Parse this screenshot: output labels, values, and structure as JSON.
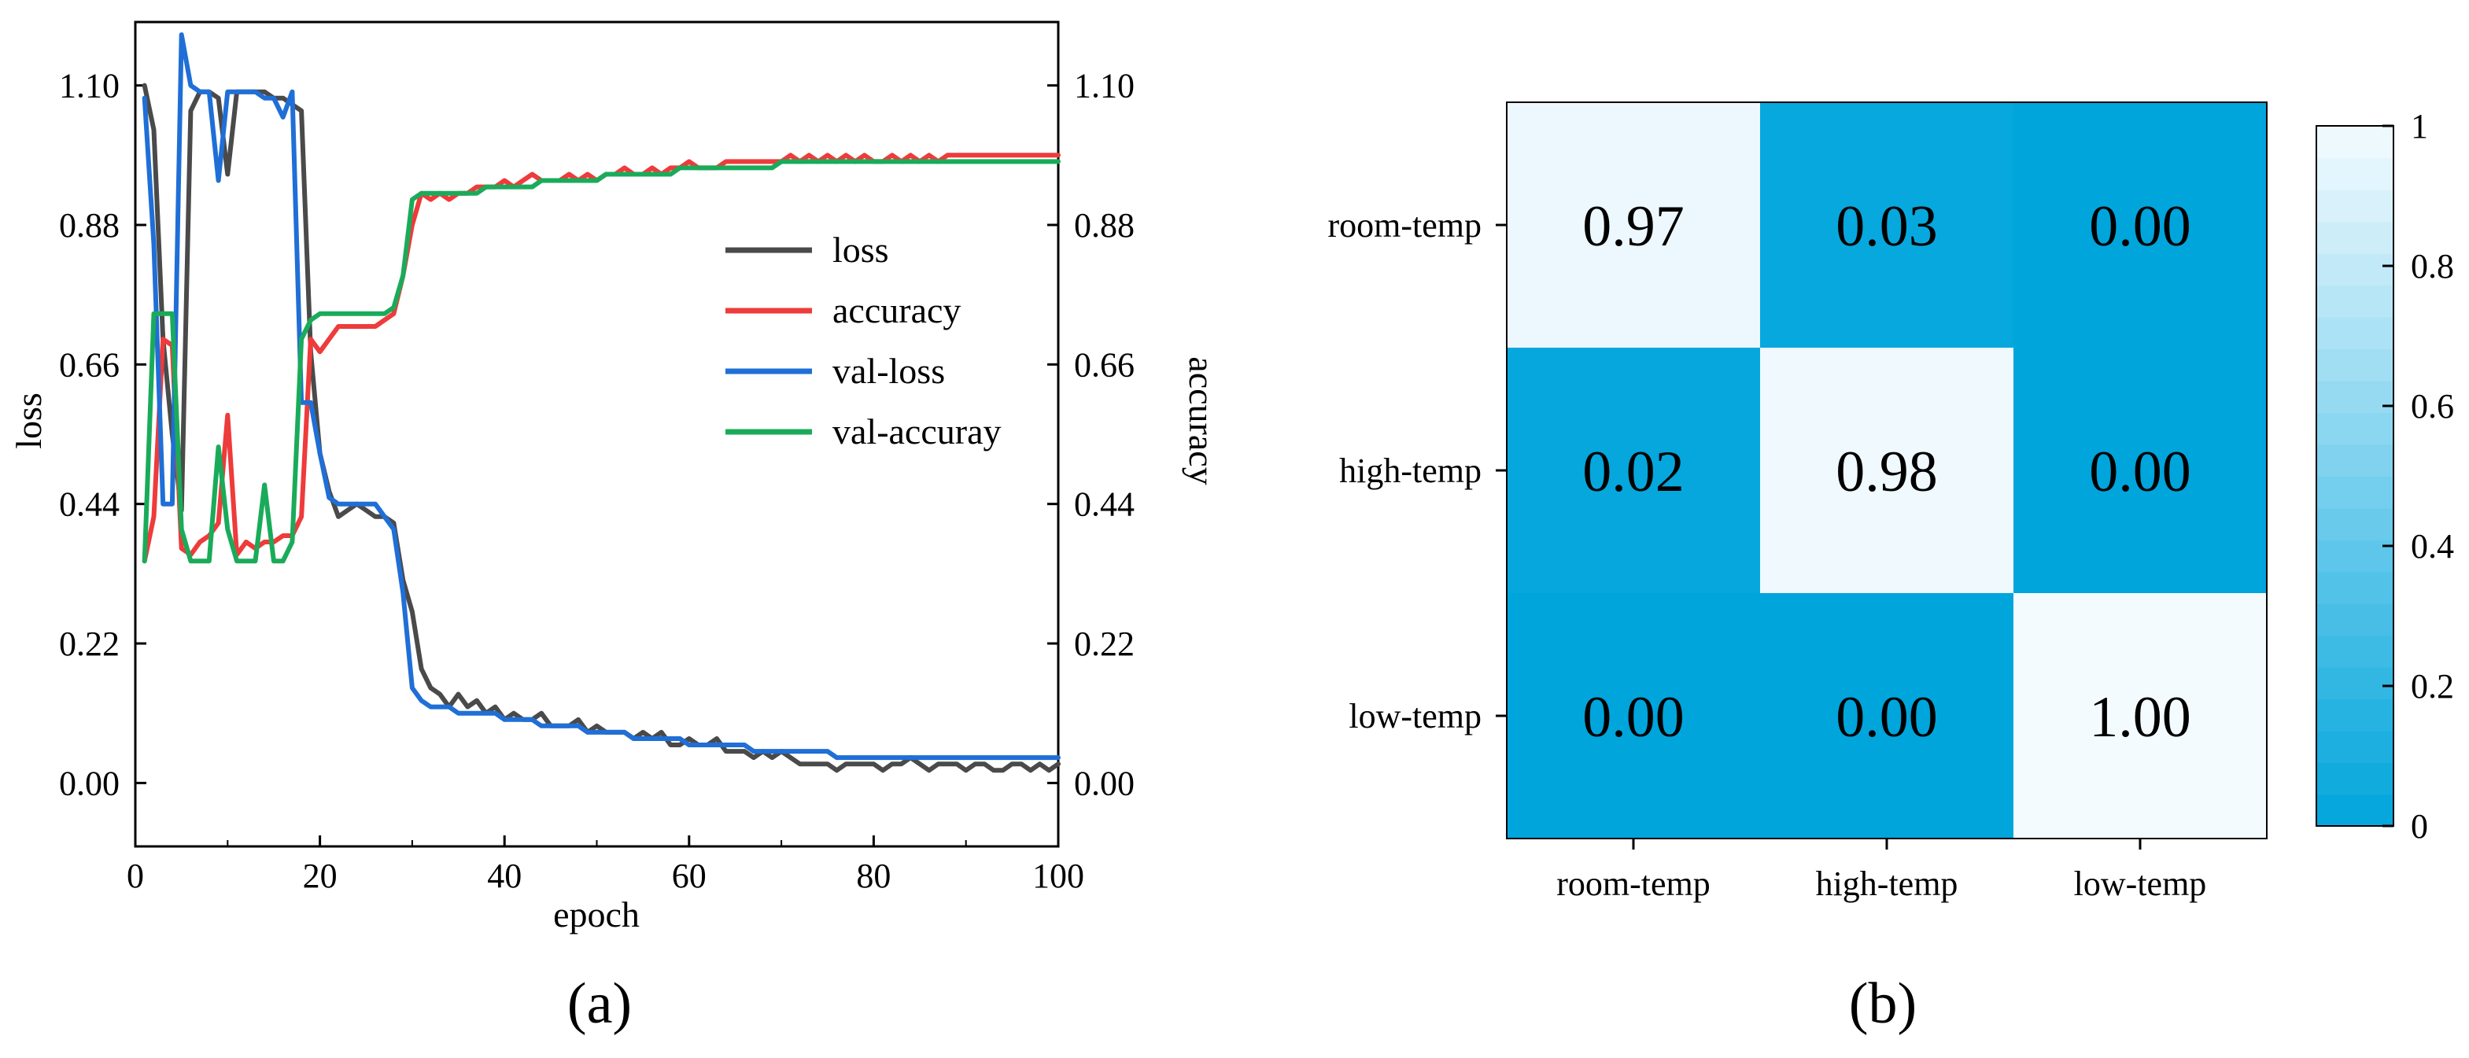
{
  "chart_data": [
    {
      "type": "line",
      "panel_label": "(a)",
      "xlabel": "epoch",
      "ylabel": "loss",
      "ylabel_right": "accuracy",
      "xlim": [
        0,
        100
      ],
      "ylim": [
        -0.1,
        1.2
      ],
      "y2lim": [
        -0.1,
        1.2
      ],
      "xticks": [
        "0",
        "20",
        "40",
        "60",
        "80",
        "100"
      ],
      "yticks": [
        "0.00",
        "0.22",
        "0.44",
        "0.66",
        "0.88",
        "1.10"
      ],
      "y2ticks": [
        "0.00",
        "0.22",
        "0.44",
        "0.66",
        "0.88",
        "1.10"
      ],
      "legend_position": "center-right",
      "series": [
        {
          "name": "loss",
          "color": "#4a4a4a",
          "x": [
            1,
            2,
            3,
            4,
            5,
            6,
            7,
            8,
            9,
            10,
            11,
            12,
            13,
            14,
            15,
            16,
            17,
            18,
            19,
            20,
            21,
            22,
            23,
            24,
            25,
            26,
            27,
            28,
            29,
            30,
            31,
            32,
            33,
            34,
            35,
            36,
            37,
            38,
            39,
            40,
            41,
            42,
            43,
            44,
            45,
            46,
            47,
            48,
            49,
            50,
            51,
            52,
            53,
            54,
            55,
            56,
            57,
            58,
            59,
            60,
            61,
            62,
            63,
            64,
            65,
            66,
            67,
            68,
            69,
            70,
            71,
            72,
            73,
            74,
            75,
            76,
            77,
            78,
            79,
            80,
            81,
            82,
            83,
            84,
            85,
            86,
            87,
            88,
            89,
            90,
            91,
            92,
            93,
            94,
            95,
            96,
            97,
            98,
            99,
            100
          ],
          "values": [
            1.1,
            1.03,
            0.7,
            0.55,
            0.43,
            1.06,
            1.09,
            1.09,
            1.08,
            0.96,
            1.09,
            1.09,
            1.09,
            1.09,
            1.08,
            1.08,
            1.07,
            1.06,
            0.68,
            0.52,
            0.46,
            0.42,
            0.43,
            0.44,
            0.43,
            0.42,
            0.42,
            0.41,
            0.32,
            0.27,
            0.18,
            0.15,
            0.14,
            0.12,
            0.14,
            0.12,
            0.13,
            0.11,
            0.12,
            0.1,
            0.11,
            0.1,
            0.1,
            0.11,
            0.09,
            0.09,
            0.09,
            0.1,
            0.08,
            0.09,
            0.08,
            0.08,
            0.08,
            0.07,
            0.08,
            0.07,
            0.08,
            0.06,
            0.06,
            0.07,
            0.06,
            0.06,
            0.07,
            0.05,
            0.05,
            0.05,
            0.04,
            0.05,
            0.04,
            0.05,
            0.04,
            0.03,
            0.03,
            0.03,
            0.03,
            0.02,
            0.03,
            0.03,
            0.03,
            0.03,
            0.02,
            0.03,
            0.03,
            0.04,
            0.03,
            0.02,
            0.03,
            0.03,
            0.03,
            0.02,
            0.03,
            0.03,
            0.02,
            0.02,
            0.03,
            0.03,
            0.02,
            0.03,
            0.02,
            0.03
          ]
        },
        {
          "name": "accuracy",
          "color": "#ee3b3b",
          "x": [
            1,
            2,
            3,
            4,
            5,
            6,
            7,
            8,
            9,
            10,
            11,
            12,
            13,
            14,
            15,
            16,
            17,
            18,
            19,
            20,
            21,
            22,
            23,
            24,
            25,
            26,
            27,
            28,
            29,
            30,
            31,
            32,
            33,
            34,
            35,
            36,
            37,
            38,
            39,
            40,
            41,
            42,
            43,
            44,
            45,
            46,
            47,
            48,
            49,
            50,
            51,
            52,
            53,
            54,
            55,
            56,
            57,
            58,
            59,
            60,
            61,
            62,
            63,
            64,
            65,
            66,
            67,
            68,
            69,
            70,
            71,
            72,
            73,
            74,
            75,
            76,
            77,
            78,
            79,
            80,
            81,
            82,
            83,
            84,
            85,
            86,
            87,
            88,
            89,
            90,
            91,
            92,
            93,
            94,
            95,
            96,
            97,
            98,
            99,
            100
          ],
          "values": [
            0.35,
            0.42,
            0.7,
            0.69,
            0.37,
            0.36,
            0.38,
            0.39,
            0.41,
            0.58,
            0.36,
            0.38,
            0.37,
            0.38,
            0.38,
            0.39,
            0.39,
            0.42,
            0.7,
            0.68,
            0.7,
            0.72,
            0.72,
            0.72,
            0.72,
            0.72,
            0.73,
            0.74,
            0.8,
            0.88,
            0.93,
            0.92,
            0.93,
            0.92,
            0.93,
            0.93,
            0.94,
            0.94,
            0.94,
            0.95,
            0.94,
            0.95,
            0.96,
            0.95,
            0.95,
            0.95,
            0.96,
            0.95,
            0.96,
            0.95,
            0.96,
            0.96,
            0.97,
            0.96,
            0.96,
            0.97,
            0.96,
            0.97,
            0.97,
            0.98,
            0.97,
            0.97,
            0.97,
            0.98,
            0.98,
            0.98,
            0.98,
            0.98,
            0.98,
            0.98,
            0.99,
            0.98,
            0.99,
            0.98,
            0.99,
            0.98,
            0.99,
            0.98,
            0.99,
            0.98,
            0.98,
            0.99,
            0.98,
            0.99,
            0.98,
            0.99,
            0.98,
            0.99,
            0.99,
            0.99,
            0.99,
            0.99,
            0.99,
            0.99,
            0.99,
            0.99,
            0.99,
            0.99,
            0.99,
            0.99
          ]
        },
        {
          "name": "val-loss",
          "color": "#1f6fd6",
          "x": [
            1,
            2,
            3,
            4,
            5,
            6,
            7,
            8,
            9,
            10,
            11,
            12,
            13,
            14,
            15,
            16,
            17,
            18,
            19,
            20,
            21,
            22,
            23,
            24,
            25,
            26,
            27,
            28,
            29,
            30,
            31,
            32,
            33,
            34,
            35,
            36,
            37,
            38,
            39,
            40,
            41,
            42,
            43,
            44,
            45,
            46,
            47,
            48,
            49,
            50,
            51,
            52,
            53,
            54,
            55,
            56,
            57,
            58,
            59,
            60,
            61,
            62,
            63,
            64,
            65,
            66,
            67,
            68,
            69,
            70,
            71,
            72,
            73,
            74,
            75,
            76,
            77,
            78,
            79,
            80,
            81,
            82,
            83,
            84,
            85,
            86,
            87,
            88,
            89,
            90,
            91,
            92,
            93,
            94,
            95,
            96,
            97,
            98,
            99,
            100
          ],
          "values": [
            1.08,
            0.85,
            0.44,
            0.44,
            1.18,
            1.1,
            1.09,
            1.09,
            0.95,
            1.09,
            1.09,
            1.09,
            1.09,
            1.08,
            1.08,
            1.05,
            1.09,
            0.6,
            0.6,
            0.52,
            0.45,
            0.44,
            0.44,
            0.44,
            0.44,
            0.44,
            0.42,
            0.4,
            0.3,
            0.15,
            0.13,
            0.12,
            0.12,
            0.12,
            0.11,
            0.11,
            0.11,
            0.11,
            0.11,
            0.1,
            0.1,
            0.1,
            0.1,
            0.09,
            0.09,
            0.09,
            0.09,
            0.09,
            0.08,
            0.08,
            0.08,
            0.08,
            0.08,
            0.07,
            0.07,
            0.07,
            0.07,
            0.07,
            0.07,
            0.06,
            0.06,
            0.06,
            0.06,
            0.06,
            0.06,
            0.06,
            0.05,
            0.05,
            0.05,
            0.05,
            0.05,
            0.05,
            0.05,
            0.05,
            0.05,
            0.04,
            0.04,
            0.04,
            0.04,
            0.04,
            0.04,
            0.04,
            0.04,
            0.04,
            0.04,
            0.04,
            0.04,
            0.04,
            0.04,
            0.04,
            0.04,
            0.04,
            0.04,
            0.04,
            0.04,
            0.04,
            0.04,
            0.04,
            0.04,
            0.04
          ]
        },
        {
          "name": "val-accuray",
          "color": "#1aab5a",
          "x": [
            1,
            2,
            3,
            4,
            5,
            6,
            7,
            8,
            9,
            10,
            11,
            12,
            13,
            14,
            15,
            16,
            17,
            18,
            19,
            20,
            21,
            22,
            23,
            24,
            25,
            26,
            27,
            28,
            29,
            30,
            31,
            32,
            33,
            34,
            35,
            36,
            37,
            38,
            39,
            40,
            41,
            42,
            43,
            44,
            45,
            46,
            47,
            48,
            49,
            50,
            51,
            52,
            53,
            54,
            55,
            56,
            57,
            58,
            59,
            60,
            61,
            62,
            63,
            64,
            65,
            66,
            67,
            68,
            69,
            70,
            71,
            72,
            73,
            74,
            75,
            76,
            77,
            78,
            79,
            80,
            81,
            82,
            83,
            84,
            85,
            86,
            87,
            88,
            89,
            90,
            91,
            92,
            93,
            94,
            95,
            96,
            97,
            98,
            99,
            100
          ],
          "values": [
            0.35,
            0.74,
            0.74,
            0.74,
            0.4,
            0.35,
            0.35,
            0.35,
            0.53,
            0.4,
            0.35,
            0.35,
            0.35,
            0.47,
            0.35,
            0.35,
            0.38,
            0.7,
            0.73,
            0.74,
            0.74,
            0.74,
            0.74,
            0.74,
            0.74,
            0.74,
            0.74,
            0.75,
            0.8,
            0.92,
            0.93,
            0.93,
            0.93,
            0.93,
            0.93,
            0.93,
            0.93,
            0.94,
            0.94,
            0.94,
            0.94,
            0.94,
            0.94,
            0.95,
            0.95,
            0.95,
            0.95,
            0.95,
            0.95,
            0.95,
            0.96,
            0.96,
            0.96,
            0.96,
            0.96,
            0.96,
            0.96,
            0.96,
            0.97,
            0.97,
            0.97,
            0.97,
            0.97,
            0.97,
            0.97,
            0.97,
            0.97,
            0.97,
            0.97,
            0.98,
            0.98,
            0.98,
            0.98,
            0.98,
            0.98,
            0.98,
            0.98,
            0.98,
            0.98,
            0.98,
            0.98,
            0.98,
            0.98,
            0.98,
            0.98,
            0.98,
            0.98,
            0.98,
            0.98,
            0.98,
            0.98,
            0.98,
            0.98,
            0.98,
            0.98,
            0.98,
            0.98,
            0.98,
            0.98,
            0.98
          ]
        }
      ]
    },
    {
      "type": "heatmap",
      "panel_label": "(b)",
      "row_labels": [
        "room-temp",
        "high-temp",
        "low-temp"
      ],
      "col_labels": [
        "room-temp",
        "high-temp",
        "low-temp"
      ],
      "values": [
        [
          0.97,
          0.03,
          0.0
        ],
        [
          0.02,
          0.98,
          0.0
        ],
        [
          0.0,
          0.0,
          1.0
        ]
      ],
      "value_labels": [
        [
          "0.97",
          "0.03",
          "0.00"
        ],
        [
          "0.02",
          "0.98",
          "0.00"
        ],
        [
          "0.00",
          "0.00",
          "1.00"
        ]
      ],
      "colorbar_range": [
        0,
        1
      ],
      "colorbar_ticks": [
        "0",
        "0.2",
        "0.4",
        "0.6",
        "0.8",
        "1"
      ],
      "colors": {
        "low": "#00a5dc",
        "high": "#f4fbff"
      }
    }
  ]
}
